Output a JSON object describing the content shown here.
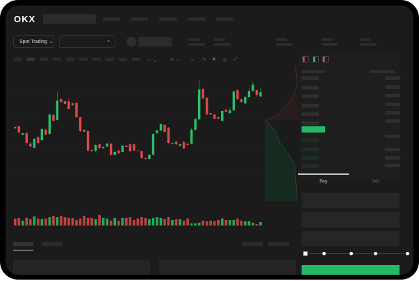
{
  "header": {
    "logo": "OKX"
  },
  "market_selector": {
    "label": "Spot Trading",
    "chevron": "chevron-down-icon"
  },
  "order_form": {
    "tabs": [
      {
        "label": "Buy",
        "active": true
      },
      {
        "label": "Sell",
        "active": false
      }
    ],
    "slider_percent": 0,
    "submit_color": "#25b864"
  },
  "colors": {
    "up": "#25c26a",
    "down": "#e04848",
    "background": "#1b1b1b",
    "best_bid": "#25b864"
  },
  "chart_data": {
    "type": "candlestick",
    "candles_ohlc": [
      [
        57,
        59,
        54,
        55
      ],
      [
        58,
        59,
        48,
        49
      ],
      [
        46,
        48,
        45,
        48
      ],
      [
        48,
        50,
        32,
        34
      ],
      [
        33,
        35,
        28,
        29
      ],
      [
        27,
        41,
        26,
        40
      ],
      [
        42,
        44,
        32,
        34
      ],
      [
        38,
        55,
        37,
        54
      ],
      [
        53,
        55,
        45,
        46
      ],
      [
        47,
        76,
        46,
        75
      ],
      [
        74,
        77,
        65,
        66
      ],
      [
        67,
        108,
        66,
        95
      ],
      [
        97,
        99,
        92,
        93
      ],
      [
        94,
        96,
        89,
        90
      ],
      [
        94,
        98,
        82,
        83
      ],
      [
        91,
        92,
        88,
        88
      ],
      [
        92,
        93,
        70,
        71
      ],
      [
        71,
        72,
        50,
        51
      ],
      [
        53,
        54,
        50,
        50
      ],
      [
        51,
        53,
        22,
        23
      ],
      [
        24,
        25,
        22,
        22
      ],
      [
        23,
        32,
        21,
        31
      ],
      [
        32,
        34,
        25,
        27
      ],
      [
        27,
        30,
        25,
        28
      ],
      [
        29,
        34,
        28,
        33
      ],
      [
        33,
        34,
        15,
        17
      ],
      [
        17,
        22,
        16,
        21
      ],
      [
        23,
        24,
        18,
        19
      ],
      [
        21,
        31,
        20,
        30
      ],
      [
        30,
        31,
        28,
        28
      ],
      [
        32,
        33,
        21,
        22
      ],
      [
        32,
        33,
        22,
        23
      ],
      [
        23,
        24,
        22,
        22
      ],
      [
        22,
        23,
        11,
        12
      ],
      [
        12,
        13,
        10,
        11
      ],
      [
        11,
        18,
        10,
        17
      ],
      [
        17,
        48,
        16,
        47
      ],
      [
        48,
        53,
        47,
        52
      ],
      [
        52,
        62,
        51,
        61
      ],
      [
        60,
        61,
        49,
        50
      ],
      [
        56,
        57,
        33,
        34
      ],
      [
        33,
        35,
        32,
        34
      ],
      [
        36,
        37,
        31,
        32
      ],
      [
        30,
        33,
        29,
        32
      ],
      [
        35,
        37,
        25,
        26
      ],
      [
        33,
        34,
        31,
        31
      ],
      [
        33,
        55,
        32,
        53
      ],
      [
        53,
        70,
        52,
        68
      ],
      [
        68,
        125,
        67,
        111
      ],
      [
        112,
        114,
        97,
        98
      ],
      [
        99,
        100,
        74,
        75
      ],
      [
        77,
        78,
        75,
        75
      ],
      [
        75,
        76,
        68,
        69
      ],
      [
        71,
        72,
        68,
        69
      ],
      [
        66,
        81,
        65,
        80
      ],
      [
        82,
        83,
        78,
        79
      ],
      [
        77,
        85,
        76,
        81
      ],
      [
        81,
        110,
        80,
        108
      ],
      [
        110,
        112,
        96,
        97
      ],
      [
        97,
        98,
        92,
        93
      ],
      [
        91,
        102,
        90,
        100
      ],
      [
        100,
        113,
        99,
        109
      ],
      [
        109,
        122,
        108,
        118
      ],
      [
        110,
        111,
        101,
        103
      ],
      [
        101,
        114,
        100,
        107
      ]
    ],
    "volume": [
      10,
      11,
      7,
      11,
      9,
      13,
      10,
      9,
      10,
      12,
      14,
      12,
      14,
      12,
      11,
      11,
      8,
      10,
      14,
      11,
      11,
      9,
      15,
      11,
      10,
      7,
      11,
      7,
      11,
      11,
      12,
      8,
      10,
      12,
      11,
      9,
      11,
      12,
      11,
      9,
      12,
      8,
      9,
      9,
      7,
      10,
      3,
      3,
      4,
      7,
      6,
      7,
      6,
      8,
      10,
      8,
      8,
      8,
      10,
      7,
      6,
      6,
      4,
      2,
      5
    ]
  }
}
